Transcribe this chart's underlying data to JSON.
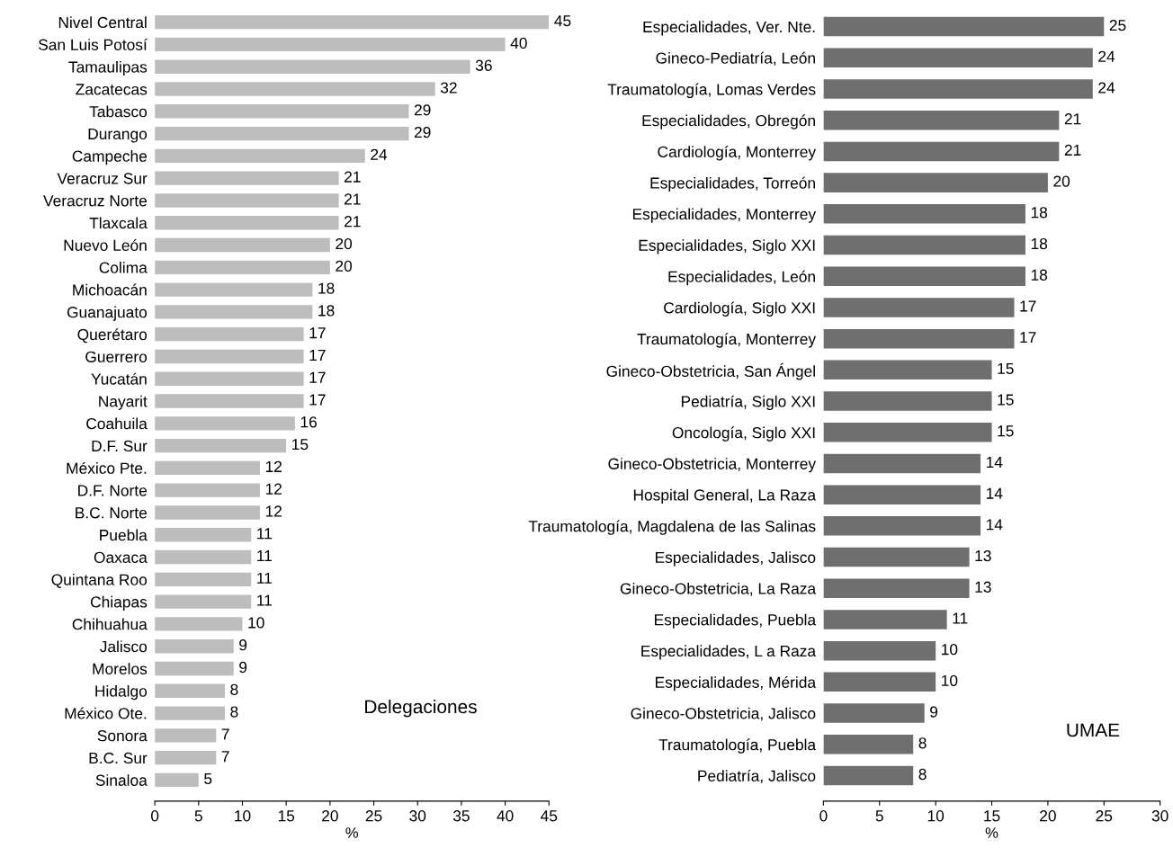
{
  "chart_data": [
    {
      "type": "bar",
      "orientation": "horizontal",
      "annotations": [
        "Delegaciones"
      ],
      "xlabel": "%",
      "data_labels": true,
      "grid": false,
      "legend": false,
      "categories": [
        "Nivel Central",
        "San Luis Potosí",
        "Tamaulipas",
        "Zacatecas",
        "Tabasco",
        "Durango",
        "Campeche",
        "Veracruz Sur",
        "Veracruz Norte",
        "Tlaxcala",
        "Nuevo León",
        "Colima",
        "Michoacán",
        "Guanajuato",
        "Querétaro",
        "Guerrero",
        "Yucatán",
        "Nayarit",
        "Coahuila",
        "D.F. Sur",
        "México Pte.",
        "D.F. Norte",
        "B.C. Norte",
        "Puebla",
        "Oaxaca",
        "Quintana Roo",
        "Chiapas",
        "Chihuahua",
        "Jalisco",
        "Morelos",
        "Hidalgo",
        "México Ote.",
        "Sonora",
        "B.C. Sur",
        "Sinaloa"
      ],
      "values": [
        45,
        40,
        36,
        32,
        29,
        29,
        24,
        21,
        21,
        21,
        20,
        20,
        18,
        18,
        17,
        17,
        17,
        17,
        16,
        15,
        12,
        12,
        12,
        11,
        11,
        11,
        11,
        10,
        9,
        9,
        8,
        8,
        7,
        7,
        5
      ],
      "color": "#bdbdbd",
      "xlim": [
        0,
        45
      ],
      "xticks": [
        0,
        5,
        10,
        15,
        20,
        25,
        30,
        35,
        40,
        45
      ]
    },
    {
      "type": "bar",
      "orientation": "horizontal",
      "annotations": [
        "UMAE"
      ],
      "xlabel": "%",
      "data_labels": true,
      "grid": false,
      "legend": false,
      "categories": [
        "Especialidades, Ver. Nte.",
        "Gineco-Pediatría, León",
        "Traumatología, Lomas Verdes",
        "Especialidades, Obregón",
        "Cardiología, Monterrey",
        "Especialidades, Torreón",
        "Especialidades, Monterrey",
        "Especialidades, Siglo XXI",
        "Especialidades, León",
        "Cardiología, Siglo XXI",
        "Traumatología, Monterrey",
        "Gineco-Obstetricia, San Ángel",
        "Pediatría, Siglo XXI",
        "Oncología, Siglo XXI",
        "Gineco-Obstetricia, Monterrey",
        "Hospital General, La Raza",
        "Traumatología, Magdalena de las Salinas",
        "Especialidades, Jalisco",
        "Gineco-Obstetricia, La Raza",
        "Especialidades, Puebla",
        "Especialidades, L a Raza",
        "Especialidades, Mérida",
        "Gineco-Obstetricia, Jalisco",
        "Traumatología, Puebla",
        "Pediatría, Jalisco"
      ],
      "values": [
        25,
        24,
        24,
        21,
        21,
        20,
        18,
        18,
        18,
        17,
        17,
        15,
        15,
        15,
        14,
        14,
        14,
        13,
        13,
        11,
        10,
        10,
        9,
        8,
        8
      ],
      "color": "#6f6f6f",
      "xlim": [
        0,
        30
      ],
      "xticks": [
        0,
        5,
        10,
        15,
        20,
        25,
        30
      ]
    }
  ]
}
